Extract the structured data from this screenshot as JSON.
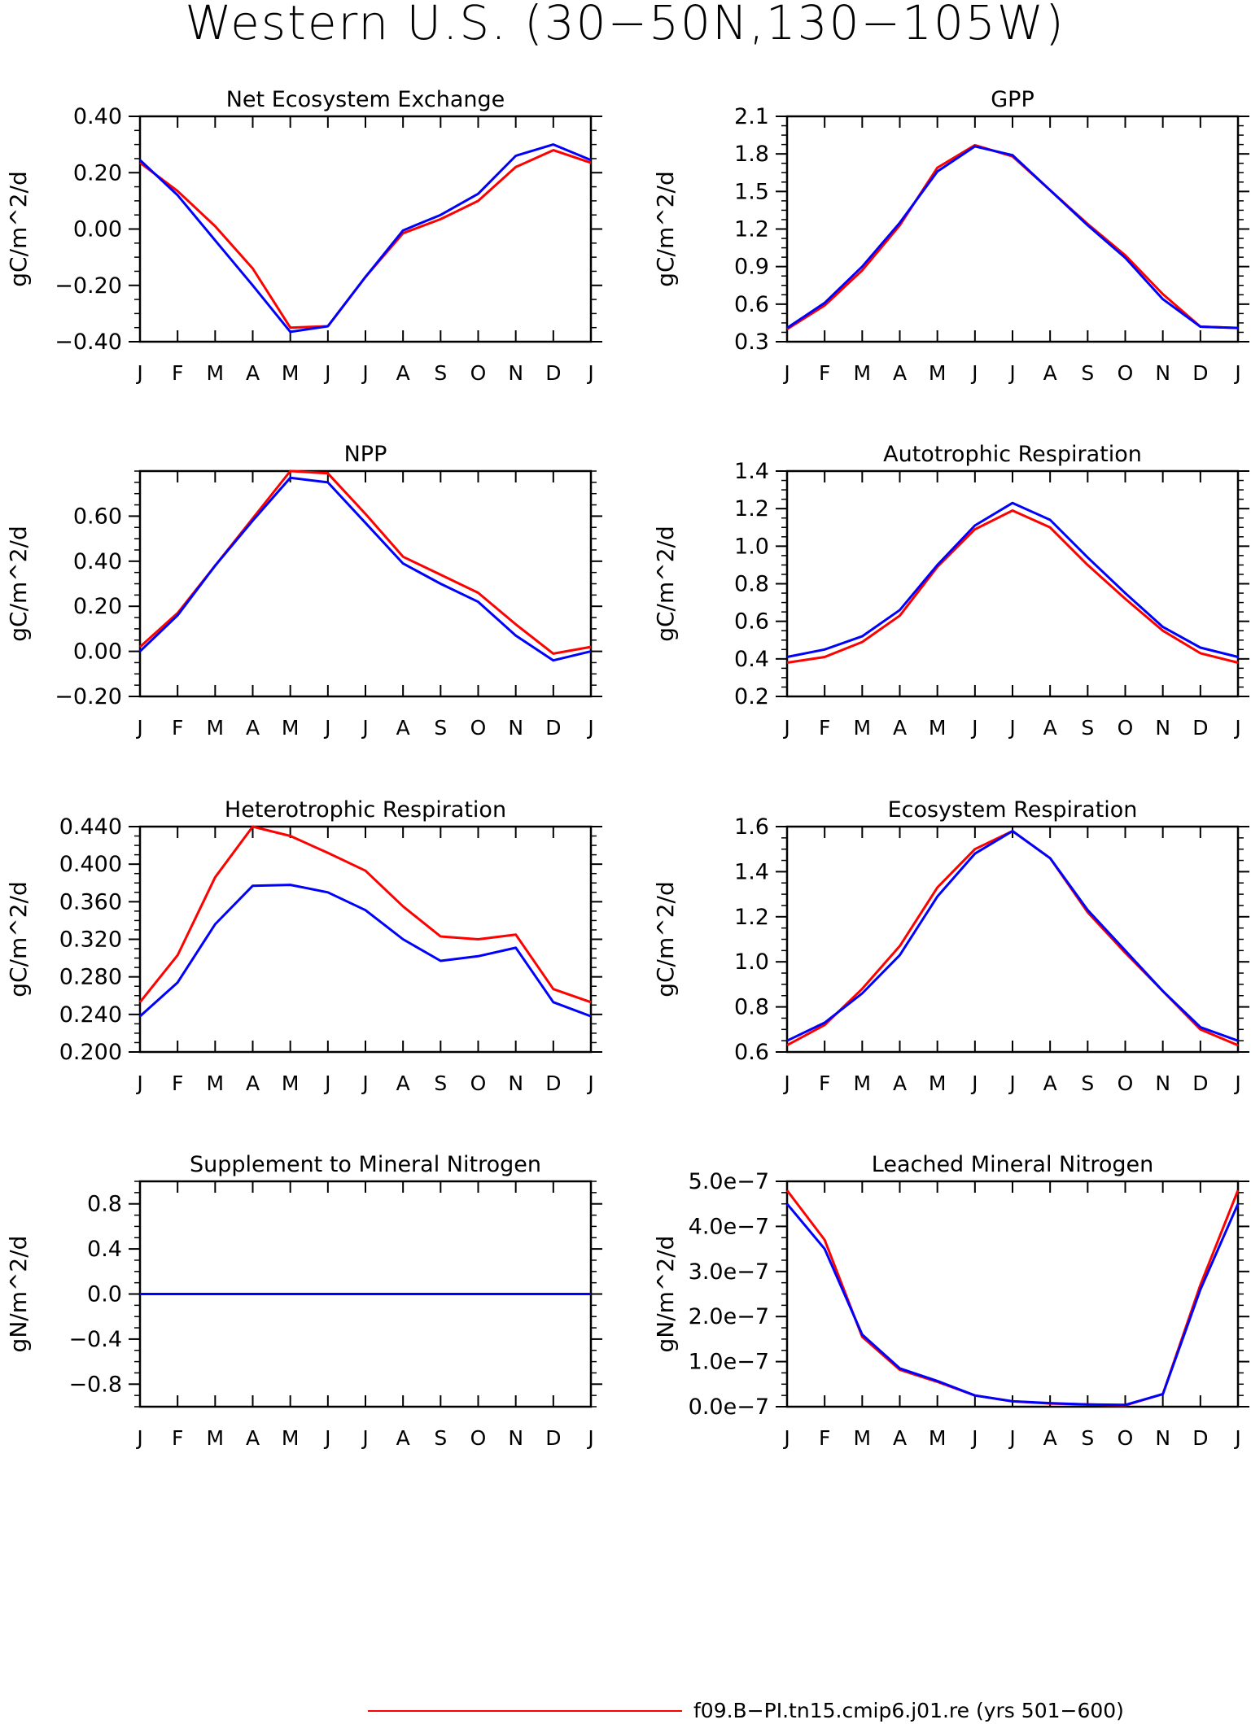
{
  "figure": {
    "title": "Western U.S. (30−50N,130−105W)",
    "legend_label": "f09.B−PI.tn15.cmip6.j01.re (yrs 501−600)",
    "month_labels": [
      "J",
      "F",
      "M",
      "A",
      "M",
      "J",
      "J",
      "A",
      "S",
      "O",
      "N",
      "D",
      "J"
    ],
    "colors": {
      "series_red": "#ff0000",
      "series_blue": "#0000ff",
      "axes": "#000000"
    }
  },
  "chart_data": [
    {
      "type": "line",
      "title": "Net Ecosystem Exchange",
      "ylabel": "gC/m^2/d",
      "ylim": [
        -0.4,
        0.4
      ],
      "yticks": [
        -0.4,
        -0.2,
        0.0,
        0.2,
        0.4
      ],
      "ytick_labels": [
        "−0.40",
        "−0.20",
        "0.00",
        "0.20",
        "0.40"
      ],
      "xlabel": "",
      "series": [
        {
          "color": "#ff0000",
          "values": [
            0.235,
            0.135,
            0.01,
            -0.14,
            -0.35,
            -0.345,
            -0.17,
            -0.015,
            0.035,
            0.1,
            0.22,
            0.28,
            0.235
          ]
        },
        {
          "color": "#0000ff",
          "values": [
            0.245,
            0.12,
            -0.04,
            -0.2,
            -0.365,
            -0.345,
            -0.17,
            -0.005,
            0.05,
            0.125,
            0.26,
            0.3,
            0.245
          ]
        }
      ]
    },
    {
      "type": "line",
      "title": "GPP",
      "ylabel": "gC/m^2/d",
      "ylim": [
        0.3,
        2.1
      ],
      "yticks": [
        0.3,
        0.6,
        0.9,
        1.2,
        1.5,
        1.8,
        2.1
      ],
      "ytick_labels": [
        "0.3",
        "0.6",
        "0.9",
        "1.2",
        "1.5",
        "1.8",
        "2.1"
      ],
      "xlabel": "",
      "series": [
        {
          "color": "#ff0000",
          "values": [
            0.4,
            0.59,
            0.87,
            1.23,
            1.69,
            1.87,
            1.78,
            1.51,
            1.24,
            0.99,
            0.68,
            0.42,
            0.41
          ]
        },
        {
          "color": "#0000ff",
          "values": [
            0.41,
            0.61,
            0.9,
            1.25,
            1.66,
            1.86,
            1.79,
            1.51,
            1.23,
            0.97,
            0.64,
            0.42,
            0.41
          ]
        }
      ]
    },
    {
      "type": "line",
      "title": "NPP",
      "ylabel": "gC/m^2/d",
      "ylim": [
        -0.2,
        0.8
      ],
      "yticks": [
        -0.2,
        0.0,
        0.2,
        0.4,
        0.6
      ],
      "ytick_labels": [
        "−0.20",
        "0.00",
        "0.20",
        "0.40",
        "0.60"
      ],
      "xlabel": "",
      "series": [
        {
          "color": "#ff0000",
          "values": [
            0.02,
            0.17,
            0.38,
            0.59,
            0.8,
            0.79,
            0.61,
            0.42,
            0.34,
            0.26,
            0.12,
            -0.01,
            0.02
          ]
        },
        {
          "color": "#0000ff",
          "values": [
            0.0,
            0.16,
            0.38,
            0.58,
            0.77,
            0.75,
            0.57,
            0.39,
            0.3,
            0.22,
            0.07,
            -0.04,
            0.0
          ]
        }
      ]
    },
    {
      "type": "line",
      "title": "Autotrophic Respiration",
      "ylabel": "gC/m^2/d",
      "ylim": [
        0.2,
        1.4
      ],
      "yticks": [
        0.2,
        0.4,
        0.6,
        0.8,
        1.0,
        1.2,
        1.4
      ],
      "ytick_labels": [
        "0.2",
        "0.4",
        "0.6",
        "0.8",
        "1.0",
        "1.2",
        "1.4"
      ],
      "xlabel": "",
      "series": [
        {
          "color": "#ff0000",
          "values": [
            0.38,
            0.41,
            0.49,
            0.63,
            0.89,
            1.09,
            1.19,
            1.1,
            0.9,
            0.72,
            0.55,
            0.43,
            0.38
          ]
        },
        {
          "color": "#0000ff",
          "values": [
            0.41,
            0.45,
            0.52,
            0.66,
            0.9,
            1.11,
            1.23,
            1.14,
            0.94,
            0.75,
            0.57,
            0.46,
            0.41
          ]
        }
      ]
    },
    {
      "type": "line",
      "title": "Heterotrophic Respiration",
      "ylabel": "gC/m^2/d",
      "ylim": [
        0.2,
        0.44
      ],
      "yticks": [
        0.2,
        0.24,
        0.28,
        0.32,
        0.36,
        0.4,
        0.44
      ],
      "ytick_labels": [
        "0.200",
        "0.240",
        "0.280",
        "0.320",
        "0.360",
        "0.400",
        "0.440"
      ],
      "xlabel": "",
      "series": [
        {
          "color": "#ff0000",
          "values": [
            0.253,
            0.303,
            0.386,
            0.44,
            0.43,
            0.412,
            0.393,
            0.355,
            0.323,
            0.32,
            0.325,
            0.267,
            0.253
          ]
        },
        {
          "color": "#0000ff",
          "values": [
            0.238,
            0.274,
            0.336,
            0.377,
            0.378,
            0.37,
            0.351,
            0.32,
            0.297,
            0.302,
            0.311,
            0.253,
            0.238
          ]
        }
      ]
    },
    {
      "type": "line",
      "title": "Ecosystem Respiration",
      "ylabel": "gC/m^2/d",
      "ylim": [
        0.6,
        1.6
      ],
      "yticks": [
        0.6,
        0.8,
        1.0,
        1.2,
        1.4,
        1.6
      ],
      "ytick_labels": [
        "0.6",
        "0.8",
        "1.0",
        "1.2",
        "1.4",
        "1.6"
      ],
      "xlabel": "",
      "series": [
        {
          "color": "#ff0000",
          "values": [
            0.63,
            0.72,
            0.88,
            1.07,
            1.33,
            1.5,
            1.58,
            1.46,
            1.22,
            1.04,
            0.87,
            0.7,
            0.63
          ]
        },
        {
          "color": "#0000ff",
          "values": [
            0.65,
            0.73,
            0.86,
            1.03,
            1.29,
            1.48,
            1.58,
            1.46,
            1.23,
            1.05,
            0.87,
            0.71,
            0.65
          ]
        }
      ]
    },
    {
      "type": "line",
      "title": "Supplement to Mineral Nitrogen",
      "ylabel": "gN/m^2/d",
      "ylim": [
        -1.0,
        1.0
      ],
      "yticks": [
        -0.8,
        -0.4,
        0.0,
        0.4,
        0.8
      ],
      "ytick_labels": [
        "−0.8",
        "−0.4",
        "0.0",
        "0.4",
        "0.8"
      ],
      "xlabel": "",
      "series": [
        {
          "color": "#ff0000",
          "values": [
            0,
            0,
            0,
            0,
            0,
            0,
            0,
            0,
            0,
            0,
            0,
            0,
            0
          ]
        },
        {
          "color": "#0000ff",
          "values": [
            0,
            0,
            0,
            0,
            0,
            0,
            0,
            0,
            0,
            0,
            0,
            0,
            0
          ]
        }
      ]
    },
    {
      "type": "line",
      "title": "Leached Mineral Nitrogen",
      "ylabel": "gN/m^2/d",
      "ylim": [
        0.0,
        5e-07
      ],
      "yticks": [
        0.0,
        1e-07,
        2e-07,
        3e-07,
        4e-07,
        5e-07
      ],
      "ytick_labels": [
        "0.0e−7",
        "1.0e−7",
        "2.0e−7",
        "3.0e−7",
        "4.0e−7",
        "5.0e−7"
      ],
      "xlabel": "",
      "series": [
        {
          "color": "#ff0000",
          "values": [
            4.8e-07,
            3.7e-07,
            1.55e-07,
            8.2e-08,
            5.5e-08,
            2.5e-08,
            1.2e-08,
            7e-09,
            5e-09,
            3e-09,
            2.8e-08,
            2.7e-07,
            4.8e-07
          ]
        },
        {
          "color": "#0000ff",
          "values": [
            4.5e-07,
            3.5e-07,
            1.6e-07,
            8.5e-08,
            5.7e-08,
            2.5e-08,
            1.2e-08,
            8e-09,
            5e-09,
            4e-09,
            2.8e-08,
            2.6e-07,
            4.5e-07
          ]
        }
      ]
    }
  ]
}
